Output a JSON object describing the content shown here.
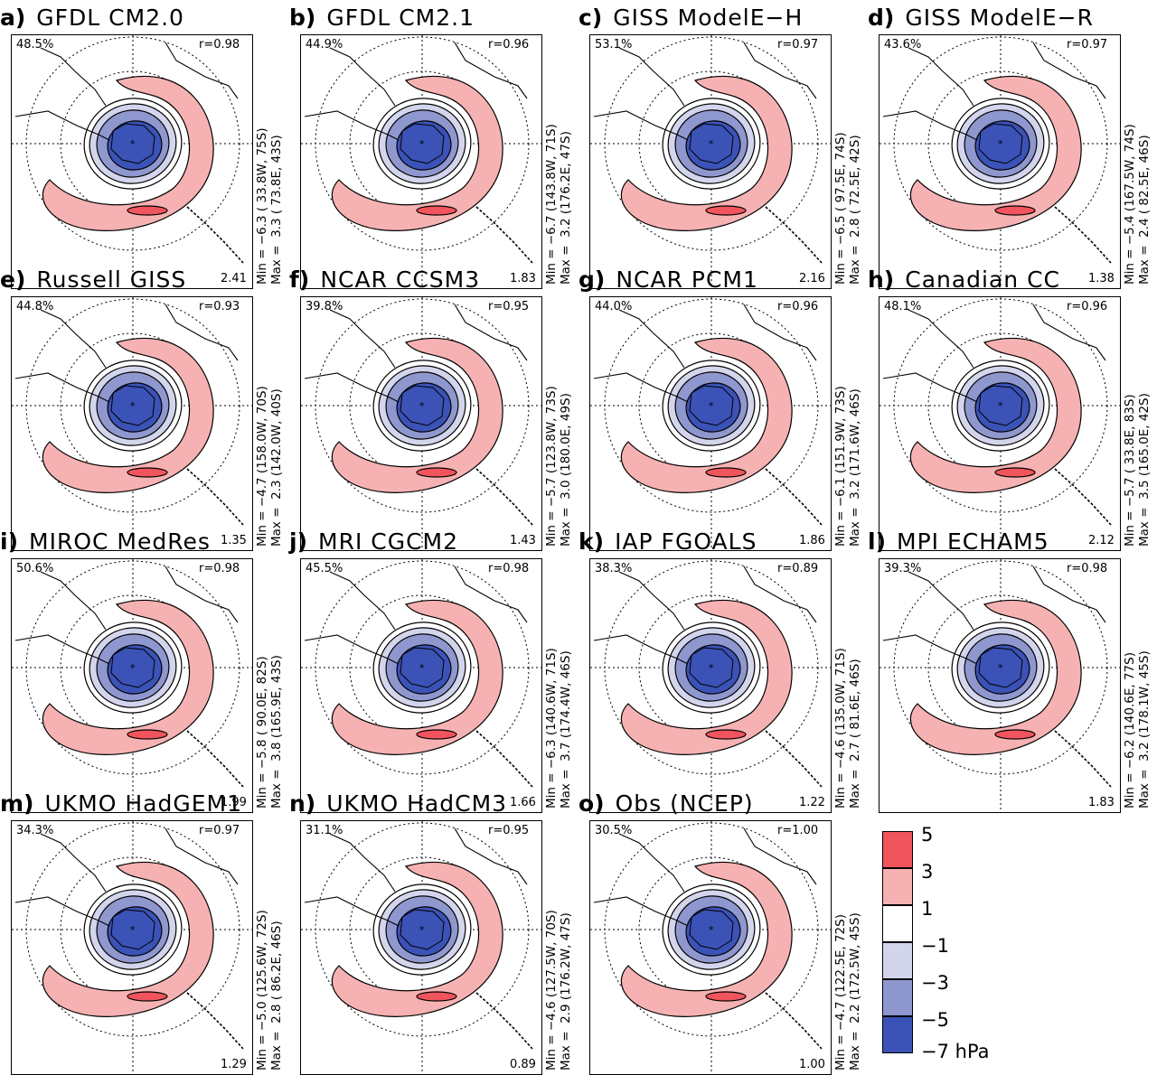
{
  "colors": {
    "c5": "#f0545c",
    "c3": "#f6b2b2",
    "c1": "#ffffff",
    "cm1": "#d3d5ec",
    "cm3": "#8f97cf",
    "cm5": "#3b52b6"
  },
  "panels": [
    {
      "label": "a)",
      "title": "GFDL CM2.0",
      "pct": "48.5%",
      "r": "r=0.98",
      "rms": "2.41",
      "min": "Min = −6.3 ( 33.8W, 75S)",
      "max": "Max =  3.3 ( 73.8E, 43S)"
    },
    {
      "label": "b)",
      "title": "GFDL CM2.1",
      "pct": "44.9%",
      "r": "r=0.96",
      "rms": "1.83",
      "min": "Min = −6.7 (143.8W, 71S)",
      "max": "Max =  3.2 (176.2E, 47S)"
    },
    {
      "label": "c)",
      "title": "GISS ModelE−H",
      "pct": "53.1%",
      "r": "r=0.97",
      "rms": "2.16",
      "min": "Min = −6.5 ( 97.5E, 74S)",
      "max": "Max =  2.8 ( 72.5E, 42S)"
    },
    {
      "label": "d)",
      "title": "GISS ModelE−R",
      "pct": "43.6%",
      "r": "r=0.97",
      "rms": "1.38",
      "min": "Min = −5.4 (167.5W, 74S)",
      "max": "Max =  2.4 ( 82.5E, 46S)"
    },
    {
      "label": "e)",
      "title": "Russell GISS",
      "pct": "44.8%",
      "r": "r=0.93",
      "rms": "1.35",
      "min": "Min = −4.7 (158.0W, 70S)",
      "max": "Max =  2.3 (142.0W, 40S)"
    },
    {
      "label": "f)",
      "title": "NCAR CCSM3",
      "pct": "39.8%",
      "r": "r=0.95",
      "rms": "1.43",
      "min": "Min = −5.7 (123.8W, 73S)",
      "max": "Max =  3.0 (180.0E, 49S)"
    },
    {
      "label": "g)",
      "title": "NCAR PCM1",
      "pct": "44.0%",
      "r": "r=0.96",
      "rms": "1.86",
      "min": "Min = −6.1 (151.9W, 73S)",
      "max": "Max =  3.2 (171.6W, 46S)"
    },
    {
      "label": "h)",
      "title": "Canadian CC",
      "pct": "48.1%",
      "r": "r=0.96",
      "rms": "2.12",
      "min": "Min = −5.7 ( 33.8E, 83S)",
      "max": "Max =  3.5 (165.0E, 42S)"
    },
    {
      "label": "i)",
      "title": "MIROC MedRes",
      "pct": "50.6%",
      "r": "r=0.98",
      "rms": "1.99",
      "min": "Min = −5.8 ( 90.0E, 82S)",
      "max": "Max =  3.8 (165.9E, 43S)"
    },
    {
      "label": "j)",
      "title": "MRI CGCM2",
      "pct": "45.5%",
      "r": "r=0.98",
      "rms": "1.66",
      "min": "Min = −6.3 (140.6W, 71S)",
      "max": "Max =  3.7 (174.4W, 46S)"
    },
    {
      "label": "k)",
      "title": "IAP FGOALS",
      "pct": "38.3%",
      "r": "r=0.89",
      "rms": "1.22",
      "min": "Min = −4.6 (135.0W, 71S)",
      "max": "Max =  2.7 ( 81.6E, 46S)"
    },
    {
      "label": "l)",
      "title": "MPI ECHAM5",
      "pct": "39.3%",
      "r": "r=0.98",
      "rms": "1.83",
      "min": "Min = −6.2 (140.6E, 77S)",
      "max": "Max =  3.2 (178.1W, 45S)"
    },
    {
      "label": "m)",
      "title": "UKMO HadGEM1",
      "pct": "34.3%",
      "r": "r=0.97",
      "rms": "1.29",
      "min": "Min = −5.0 (125.6W, 72S)",
      "max": "Max =  2.8 ( 86.2E, 46S)"
    },
    {
      "label": "n)",
      "title": "UKMO HadCM3",
      "pct": "31.1%",
      "r": "r=0.95",
      "rms": "0.89",
      "min": "Min = −4.6 (127.5W, 70S)",
      "max": "Max =  2.9 (176.2W, 47S)"
    },
    {
      "label": "o)",
      "title": "Obs (NCEP)",
      "pct": "30.5%",
      "r": "r=1.00",
      "rms": "1.00",
      "min": "Min = −4.7 (122.5E, 72S)",
      "max": "Max =  2.2 (172.5W, 45S)"
    }
  ],
  "legend": {
    "labels": [
      "5",
      "3",
      "1",
      "−1",
      "−3",
      "−5",
      "−7 hPa"
    ]
  }
}
